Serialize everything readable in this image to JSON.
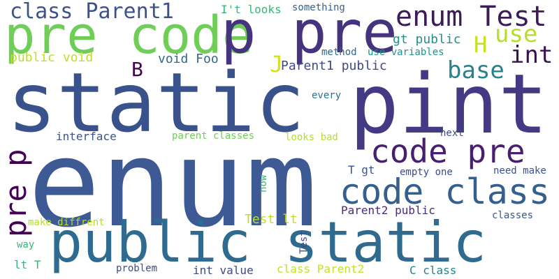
{
  "words": [
    {
      "text": "enum",
      "color": "#3e5a94"
    },
    {
      "text": "static",
      "color": "#3a528b"
    },
    {
      "text": "pint",
      "color": "#443983"
    },
    {
      "text": "public static",
      "color": "#2f6b8e"
    },
    {
      "text": "pre code",
      "color": "#6ece58"
    },
    {
      "text": "p pre",
      "color": "#46337e"
    },
    {
      "text": "code class",
      "color": "#355f8d"
    },
    {
      "text": "code pre",
      "color": "#481f70"
    },
    {
      "text": "enum Test",
      "color": "#3d1b5a"
    },
    {
      "text": "class Parent1",
      "color": "#3b528b"
    },
    {
      "text": "pre p",
      "color": "#440154"
    },
    {
      "text": "use",
      "color": "#b5de2b"
    },
    {
      "text": "int",
      "color": "#3b0f52"
    },
    {
      "text": "base",
      "color": "#26828e"
    },
    {
      "text": "H",
      "color": "#c8e020"
    },
    {
      "text": "J",
      "color": "#d8e219"
    },
    {
      "text": "B",
      "color": "#440154"
    },
    {
      "text": "void Foo",
      "color": "#31688e"
    },
    {
      "text": "Parent1 public",
      "color": "#3e4989"
    },
    {
      "text": "public void",
      "color": "#bddf26"
    },
    {
      "text": "gt public",
      "color": "#21918c"
    },
    {
      "text": "I't looks",
      "color": "#35b779"
    },
    {
      "text": "something",
      "color": "#355f8d"
    },
    {
      "text": "method",
      "color": "#31688e"
    },
    {
      "text": "use variables",
      "color": "#21918c"
    },
    {
      "text": "every",
      "color": "#2c728e"
    },
    {
      "text": "interface",
      "color": "#3b528b"
    },
    {
      "text": "parent classes",
      "color": "#6ece58"
    },
    {
      "text": "looks bad",
      "color": "#b5de2b"
    },
    {
      "text": "next",
      "color": "#3e4989"
    },
    {
      "text": "T gt",
      "color": "#3b528b"
    },
    {
      "text": "empty one",
      "color": "#3e4989"
    },
    {
      "text": "need make",
      "color": "#3b528b"
    },
    {
      "text": "now",
      "color": "#35b779"
    },
    {
      "text": "Parent2 public",
      "color": "#472d7b"
    },
    {
      "text": "Test lt",
      "color": "#bddf26"
    },
    {
      "text": "make diffrent",
      "color": "#b5de2b"
    },
    {
      "text": "classes",
      "color": "#3b528b"
    },
    {
      "text": "way",
      "color": "#35b779"
    },
    {
      "text": "Test",
      "color": "#3e4989"
    },
    {
      "text": "lt T",
      "color": "#35b779"
    },
    {
      "text": "problem",
      "color": "#3e4989"
    },
    {
      "text": "int value",
      "color": "#3e4989"
    },
    {
      "text": "class Parent2",
      "color": "#c8e020"
    },
    {
      "text": "C class",
      "color": "#26828e"
    }
  ]
}
